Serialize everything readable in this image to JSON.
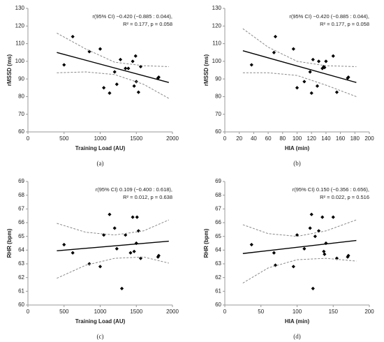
{
  "chart_data": [
    {
      "type": "scatter",
      "caption": "(a)",
      "x_label": "Training Load (AU)",
      "y_label": "rMSSD (ms)",
      "annotation": [
        "r(95% CI) −0.420 (−0.885 : 0.044),",
        "R² = 0.177, p = 0.058"
      ],
      "xlim": [
        0,
        2000
      ],
      "xticks": [
        0,
        500,
        1000,
        1500,
        2000
      ],
      "ylim": [
        60,
        130
      ],
      "yticks": [
        60,
        70,
        80,
        90,
        100,
        110,
        120,
        130
      ],
      "series": [
        {
          "mode": "markers",
          "color": "#000000",
          "x": [
            500,
            620,
            850,
            1000,
            1050,
            1130,
            1200,
            1230,
            1280,
            1350,
            1390,
            1450,
            1470,
            1490,
            1500,
            1530,
            1560,
            1800,
            1810
          ],
          "values": [
            98,
            114,
            105.5,
            107,
            85,
            82,
            94,
            87,
            101,
            96,
            96,
            100,
            86,
            103,
            88.5,
            82.5,
            97,
            90.5,
            91
          ]
        },
        {
          "mode": "line",
          "color": "#000000",
          "x": [
            400,
            1950
          ],
          "values": [
            105,
            88
          ]
        },
        {
          "mode": "line",
          "dash": true,
          "color": "#888888",
          "x": [
            400,
            800,
            1200,
            1600,
            1950
          ],
          "values": [
            116,
            107,
            99.5,
            97.5,
            97
          ]
        },
        {
          "mode": "line",
          "dash": true,
          "color": "#888888",
          "x": [
            400,
            800,
            1200,
            1600,
            1950
          ],
          "values": [
            93.5,
            94,
            92.5,
            87,
            79
          ]
        }
      ]
    },
    {
      "type": "scatter",
      "caption": "(b)",
      "x_label": "HIA (min)",
      "y_label": "rMSSD (ms)",
      "annotation": [
        "r(95% CI) −0.420 (−0.885 : 0.044),",
        "R² = 0.177, p = 0.058"
      ],
      "xlim": [
        0,
        200
      ],
      "xticks": [
        0,
        20,
        40,
        60,
        80,
        100,
        120,
        140,
        160,
        180,
        200
      ],
      "ylim": [
        60,
        130
      ],
      "yticks": [
        60,
        70,
        80,
        90,
        100,
        110,
        120,
        130
      ],
      "series": [
        {
          "mode": "markers",
          "color": "#000000",
          "x": [
            37,
            68,
            70,
            95,
            100,
            110,
            118,
            120,
            122,
            128,
            130,
            135,
            137,
            138,
            140,
            150,
            155,
            170,
            171
          ],
          "values": [
            98,
            105,
            114,
            107,
            85,
            88.5,
            94,
            82,
            101,
            86,
            100,
            96,
            97,
            96.5,
            100,
            103,
            82.5,
            90.5,
            91
          ]
        },
        {
          "mode": "line",
          "color": "#000000",
          "x": [
            25,
            182
          ],
          "values": [
            106,
            88
          ]
        },
        {
          "mode": "line",
          "dash": true,
          "color": "#888888",
          "x": [
            25,
            60,
            100,
            140,
            182
          ],
          "values": [
            118.5,
            108,
            100,
            97.5,
            97
          ]
        },
        {
          "mode": "line",
          "dash": true,
          "color": "#888888",
          "x": [
            25,
            60,
            100,
            140,
            182
          ],
          "values": [
            93.5,
            93.5,
            92,
            86.5,
            80
          ]
        }
      ]
    },
    {
      "type": "scatter",
      "caption": "(c)",
      "x_label": "Training Load (AU)",
      "y_label": "RHR (bpm)",
      "annotation": [
        "r(95% CI) 0.109 (−0.400 : 0.618),",
        "R² = 0.012, p = 0.638"
      ],
      "xlim": [
        0,
        2000
      ],
      "xticks": [
        0,
        500,
        1000,
        1500,
        2000
      ],
      "ylim": [
        60,
        69
      ],
      "yticks": [
        60,
        61,
        62,
        63,
        64,
        65,
        66,
        67,
        68,
        69
      ],
      "series": [
        {
          "mode": "markers",
          "color": "#000000",
          "x": [
            500,
            620,
            850,
            1000,
            1050,
            1130,
            1200,
            1230,
            1300,
            1350,
            1420,
            1450,
            1470,
            1500,
            1510,
            1530,
            1560,
            1800,
            1810
          ],
          "values": [
            64.4,
            63.8,
            63.0,
            62.8,
            65.1,
            66.6,
            65.6,
            64.1,
            61.2,
            65.1,
            63.8,
            66.4,
            63.9,
            64.5,
            66.4,
            65.4,
            63.4,
            63.5,
            63.6
          ]
        },
        {
          "mode": "line",
          "color": "#000000",
          "x": [
            400,
            1950
          ],
          "values": [
            63.95,
            64.65
          ]
        },
        {
          "mode": "line",
          "dash": true,
          "color": "#888888",
          "x": [
            400,
            800,
            1200,
            1600,
            1950
          ],
          "values": [
            65.95,
            65.3,
            65.1,
            65.4,
            66.2
          ]
        },
        {
          "mode": "line",
          "dash": true,
          "color": "#888888",
          "x": [
            400,
            800,
            1200,
            1600,
            1950
          ],
          "values": [
            61.95,
            62.9,
            63.4,
            63.5,
            63.05
          ]
        }
      ]
    },
    {
      "type": "scatter",
      "caption": "(d)",
      "x_label": "HIA (min)",
      "y_label": "RHR (bpm)",
      "annotation": [
        "r(95% CI) 0.150 (−0.356 : 0.656),",
        "R² = 0.022, p = 0.516"
      ],
      "xlim": [
        0,
        200
      ],
      "xticks": [
        0,
        50,
        100,
        150,
        200
      ],
      "ylim": [
        60,
        69
      ],
      "yticks": [
        60,
        61,
        62,
        63,
        64,
        65,
        66,
        67,
        68,
        69
      ],
      "series": [
        {
          "mode": "markers",
          "color": "#000000",
          "x": [
            37,
            68,
            70,
            95,
            100,
            110,
            118,
            120,
            122,
            125,
            130,
            135,
            137,
            138,
            140,
            150,
            155,
            170,
            171
          ],
          "values": [
            64.4,
            63.8,
            62.9,
            62.8,
            65.1,
            64.1,
            65.6,
            66.6,
            61.2,
            65.0,
            65.4,
            66.4,
            63.9,
            63.7,
            64.5,
            66.4,
            63.4,
            63.5,
            63.6
          ]
        },
        {
          "mode": "line",
          "color": "#000000",
          "x": [
            25,
            182
          ],
          "values": [
            63.75,
            64.7
          ]
        },
        {
          "mode": "line",
          "dash": true,
          "color": "#888888",
          "x": [
            25,
            60,
            100,
            140,
            182
          ],
          "values": [
            65.85,
            65.2,
            65.0,
            65.4,
            66.2
          ]
        },
        {
          "mode": "line",
          "dash": true,
          "color": "#888888",
          "x": [
            25,
            60,
            100,
            140,
            182
          ],
          "values": [
            61.6,
            62.7,
            63.3,
            63.4,
            63.2
          ]
        }
      ]
    }
  ]
}
